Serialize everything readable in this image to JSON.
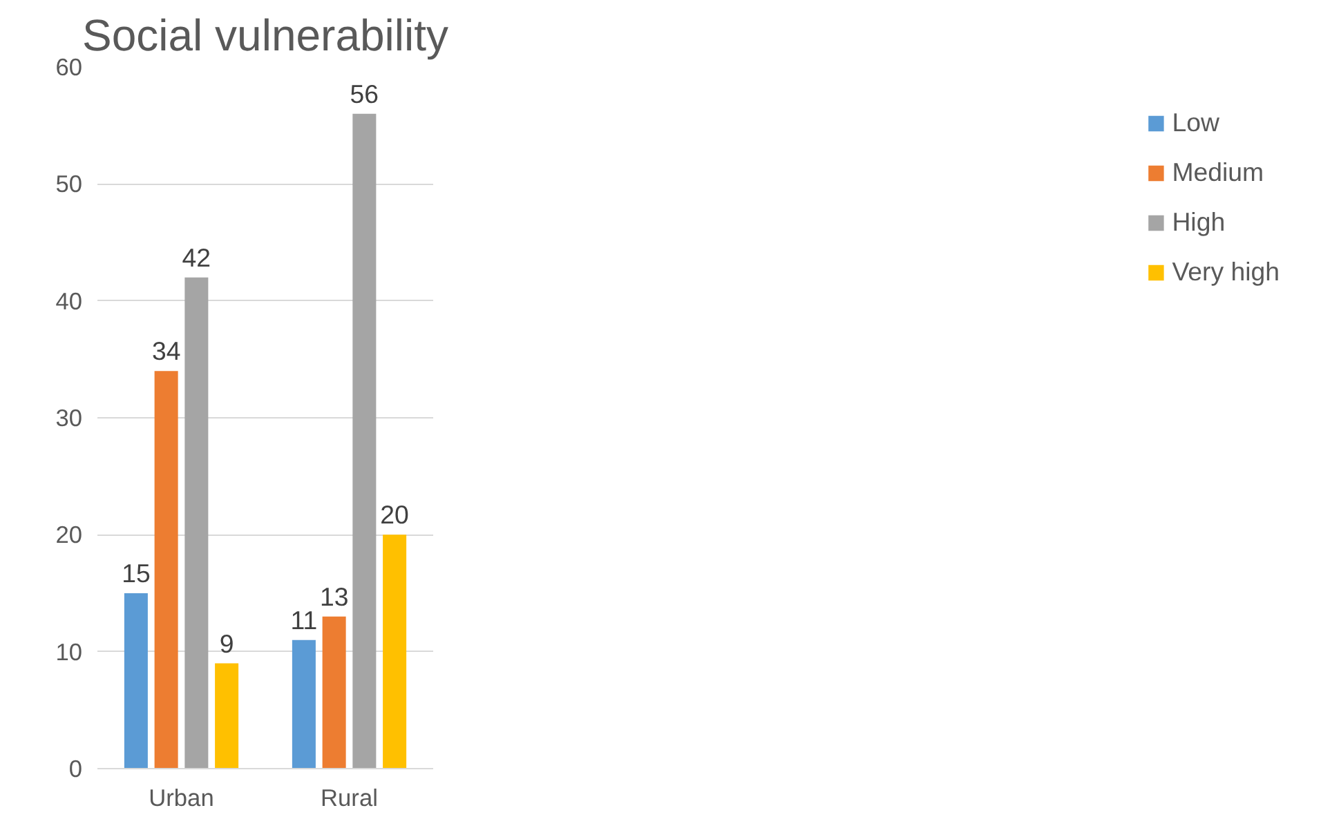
{
  "chart_data": {
    "type": "bar",
    "title": "Social vulnerability",
    "categories": [
      "Urban",
      "Rural"
    ],
    "series": [
      {
        "name": "Low",
        "color": "#5b9bd5",
        "values": [
          15,
          11
        ]
      },
      {
        "name": "Medium",
        "color": "#ed7d31",
        "values": [
          34,
          13
        ]
      },
      {
        "name": "High",
        "color": "#a5a5a5",
        "values": [
          42,
          56
        ]
      },
      {
        "name": "Very high",
        "color": "#ffc000",
        "values": [
          9,
          20
        ]
      }
    ],
    "ylim": [
      0,
      60
    ],
    "yticks": [
      0,
      10,
      20,
      30,
      40,
      50,
      60
    ],
    "grid": "y",
    "legend": "right",
    "data_labels": true
  }
}
